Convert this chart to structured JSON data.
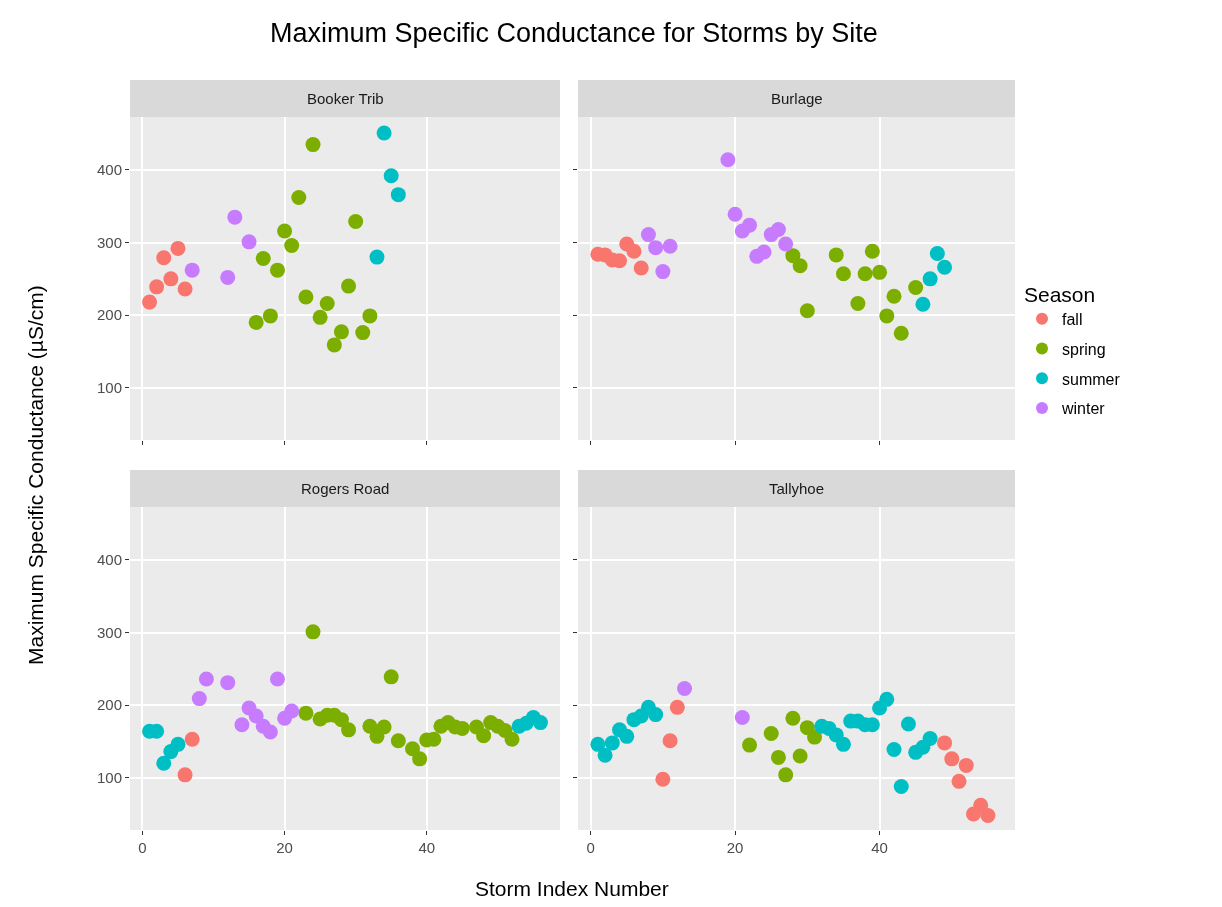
{
  "chart_data": [
    {
      "type": "scatter",
      "title": "Booker Trib",
      "annotations": [
        "Maximum Specific Conductance for Storms by Site"
      ],
      "xlabel": "Storm Index Number",
      "ylabel": "Maximum Specific Conductance (µS/cm)",
      "legend_title": "Season",
      "legend": "right",
      "grid": true,
      "marker": "circle",
      "tick_labels": "y",
      "xlim": [
        -1.75,
        58.75
      ],
      "ylim": [
        28,
        473
      ],
      "xticks": [
        0,
        20,
        40
      ],
      "yticks": [
        100,
        200,
        300,
        400
      ],
      "series": [
        {
          "name": "fall",
          "color": "#f8766d",
          "x": [
            1,
            2,
            3,
            4,
            5,
            6
          ],
          "values": [
            218,
            239,
            279,
            250,
            292,
            236
          ]
        },
        {
          "name": "spring",
          "color": "#7cae00",
          "x": [
            16,
            17,
            18,
            19,
            20,
            21,
            22,
            23,
            24,
            25,
            26,
            27,
            28,
            29,
            30,
            31,
            32
          ],
          "values": [
            190,
            278,
            199,
            262,
            316,
            296,
            362,
            225,
            435,
            197,
            216,
            159,
            177,
            240,
            329,
            176,
            199
          ]
        },
        {
          "name": "summer",
          "color": "#00bfc4",
          "x": [
            33,
            34,
            35,
            36
          ],
          "values": [
            280,
            451,
            392,
            366
          ]
        },
        {
          "name": "winter",
          "color": "#c77cff",
          "x": [
            7,
            12,
            13,
            15
          ],
          "values": [
            262,
            252,
            335,
            301
          ]
        }
      ]
    },
    {
      "type": "scatter",
      "title": "Burlage",
      "grid": true,
      "marker": "circle",
      "tick_labels": false,
      "xlim": [
        -1.75,
        58.75
      ],
      "ylim": [
        28,
        473
      ],
      "xticks": [
        0,
        20,
        40
      ],
      "yticks": [
        100,
        200,
        300,
        400
      ],
      "series": [
        {
          "name": "fall",
          "color": "#f8766d",
          "x": [
            1,
            2,
            3,
            4,
            5,
            6,
            7
          ],
          "values": [
            284,
            283,
            276,
            275,
            298,
            288,
            265
          ]
        },
        {
          "name": "spring",
          "color": "#7cae00",
          "x": [
            28,
            29,
            30,
            34,
            35,
            37,
            38,
            39,
            40,
            41,
            42,
            43,
            45
          ],
          "values": [
            282,
            268,
            206,
            283,
            257,
            216,
            257,
            288,
            259,
            199,
            226,
            175,
            238
          ]
        },
        {
          "name": "summer",
          "color": "#00bfc4",
          "x": [
            46,
            47,
            48,
            49
          ],
          "values": [
            215,
            250,
            285,
            266
          ]
        },
        {
          "name": "winter",
          "color": "#c77cff",
          "x": [
            8,
            9,
            10,
            11,
            19,
            20,
            21,
            22,
            23,
            24,
            25,
            26,
            27
          ],
          "values": [
            311,
            293,
            260,
            295,
            414,
            339,
            316,
            324,
            281,
            287,
            311,
            318,
            298
          ]
        }
      ]
    },
    {
      "type": "scatter",
      "title": "Rogers Road",
      "grid": true,
      "marker": "circle",
      "xlim": [
        -1.75,
        58.75
      ],
      "ylim": [
        28,
        473
      ],
      "xticks": [
        0,
        20,
        40
      ],
      "yticks": [
        100,
        200,
        300,
        400
      ],
      "series": [
        {
          "name": "fall",
          "color": "#f8766d",
          "x": [
            6,
            7
          ],
          "values": [
            104,
            153
          ]
        },
        {
          "name": "spring",
          "color": "#7cae00",
          "x": [
            23,
            24,
            25,
            26,
            27,
            28,
            29,
            32,
            33,
            34,
            35,
            36,
            38,
            39,
            40,
            41,
            42,
            43,
            44,
            45,
            47,
            48,
            49,
            50,
            51,
            52
          ],
          "values": [
            189,
            301,
            181,
            186,
            186,
            180,
            166,
            171,
            157,
            170,
            239,
            151,
            140,
            126,
            152,
            153,
            171,
            176,
            170,
            168,
            170,
            158,
            176,
            171,
            165,
            153
          ]
        },
        {
          "name": "summer",
          "color": "#00bfc4",
          "x": [
            1,
            2,
            3,
            4,
            5,
            53,
            54,
            55,
            56
          ],
          "values": [
            164,
            164,
            120,
            136,
            146,
            171,
            175,
            183,
            176
          ]
        },
        {
          "name": "winter",
          "color": "#c77cff",
          "x": [
            8,
            9,
            12,
            14,
            15,
            16,
            17,
            18,
            19,
            20,
            21
          ],
          "values": [
            209,
            236,
            231,
            173,
            196,
            185,
            171,
            163,
            236,
            182,
            192
          ]
        }
      ]
    },
    {
      "type": "scatter",
      "title": "Tallyhoe",
      "grid": true,
      "marker": "circle",
      "tick_labels": "x",
      "xlim": [
        -1.75,
        58.75
      ],
      "ylim": [
        28,
        473
      ],
      "xticks": [
        0,
        20,
        40
      ],
      "yticks": [
        100,
        200,
        300,
        400
      ],
      "series": [
        {
          "name": "fall",
          "color": "#f8766d",
          "x": [
            10,
            11,
            12,
            49,
            50,
            51,
            52,
            53,
            54,
            55
          ],
          "values": [
            98,
            151,
            197,
            148,
            126,
            95,
            117,
            50,
            62,
            48
          ]
        },
        {
          "name": "spring",
          "color": "#7cae00",
          "x": [
            22,
            25,
            26,
            27,
            28,
            29,
            30,
            31
          ],
          "values": [
            145,
            161,
            128,
            104,
            182,
            130,
            169,
            156
          ]
        },
        {
          "name": "summer",
          "color": "#00bfc4",
          "x": [
            1,
            2,
            3,
            4,
            5,
            6,
            7,
            8,
            9,
            32,
            33,
            34,
            35,
            36,
            37,
            38,
            39,
            40,
            41,
            42,
            43,
            44,
            45,
            46,
            47
          ],
          "values": [
            146,
            131,
            148,
            166,
            157,
            180,
            185,
            197,
            187,
            171,
            168,
            159,
            146,
            178,
            178,
            173,
            173,
            196,
            208,
            139,
            88,
            174,
            135,
            142,
            154
          ]
        },
        {
          "name": "winter",
          "color": "#c77cff",
          "x": [
            13,
            21
          ],
          "values": [
            223,
            183
          ]
        }
      ]
    }
  ]
}
